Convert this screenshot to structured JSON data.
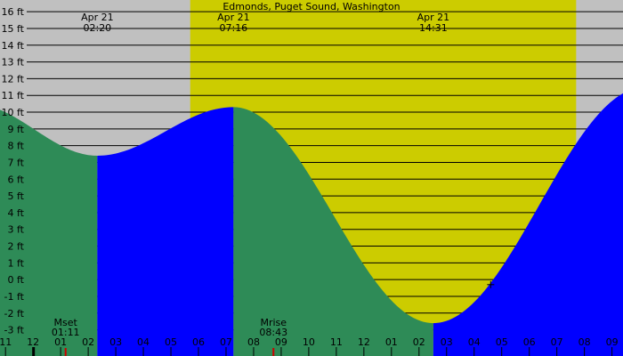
{
  "chart_data": {
    "type": "area",
    "title": "Edmonds, Puget Sound, Washington",
    "unit": "ft",
    "ylim": [
      -3.5,
      16.7
    ],
    "y_ticks": [
      {
        "value": 16,
        "label": "16 ft"
      },
      {
        "value": 15,
        "label": "15 ft"
      },
      {
        "value": 14,
        "label": "14 ft"
      },
      {
        "value": 13,
        "label": "13 ft"
      },
      {
        "value": 12,
        "label": "12 ft"
      },
      {
        "value": 11,
        "label": "11 ft"
      },
      {
        "value": 10,
        "label": "10 ft"
      },
      {
        "value": 9,
        "label": "9 ft"
      },
      {
        "value": 8,
        "label": "8 ft"
      },
      {
        "value": 7,
        "label": "7 ft"
      },
      {
        "value": 6,
        "label": "6 ft"
      },
      {
        "value": 5,
        "label": "5 ft"
      },
      {
        "value": 4,
        "label": "4 ft"
      },
      {
        "value": 3,
        "label": "3 ft"
      },
      {
        "value": 2,
        "label": "2 ft"
      },
      {
        "value": 1,
        "label": "1 ft"
      },
      {
        "value": 0,
        "label": "0 ft"
      },
      {
        "value": -1,
        "label": "-1 ft"
      },
      {
        "value": -2,
        "label": "-2 ft"
      },
      {
        "value": -3,
        "label": "-3 ft"
      }
    ],
    "x_range_hours": [
      -1.2,
      21.4
    ],
    "x_ticks": [
      {
        "hour": -1,
        "label": "11"
      },
      {
        "hour": 0,
        "label": "12"
      },
      {
        "hour": 1,
        "label": "01"
      },
      {
        "hour": 2,
        "label": "02"
      },
      {
        "hour": 3,
        "label": "03"
      },
      {
        "hour": 4,
        "label": "04"
      },
      {
        "hour": 5,
        "label": "05"
      },
      {
        "hour": 6,
        "label": "06"
      },
      {
        "hour": 7,
        "label": "07"
      },
      {
        "hour": 8,
        "label": "08"
      },
      {
        "hour": 9,
        "label": "09"
      },
      {
        "hour": 10,
        "label": "10"
      },
      {
        "hour": 11,
        "label": "11"
      },
      {
        "hour": 12,
        "label": "12"
      },
      {
        "hour": 13,
        "label": "01"
      },
      {
        "hour": 14,
        "label": "02"
      },
      {
        "hour": 15,
        "label": "03"
      },
      {
        "hour": 16,
        "label": "04"
      },
      {
        "hour": 17,
        "label": "05"
      },
      {
        "hour": 18,
        "label": "06"
      },
      {
        "hour": 19,
        "label": "07"
      },
      {
        "hour": 20,
        "label": "08"
      },
      {
        "hour": 21,
        "label": "09"
      }
    ],
    "daylight_hours": [
      5.7,
      19.7
    ],
    "tide_extremes": [
      {
        "hour": -2.2,
        "value": 10.5
      },
      {
        "hour": 2.33,
        "value": 7.4,
        "date_label": "Apr 21",
        "time_label": "02:20"
      },
      {
        "hour": 7.27,
        "value": 10.3,
        "date_label": "Apr 21",
        "time_label": "07:16"
      },
      {
        "hour": 14.52,
        "value": -2.6,
        "date_label": "Apr 21",
        "time_label": "14:31"
      },
      {
        "hour": 22.2,
        "value": 11.5
      }
    ],
    "phases": [
      {
        "start": -1.2,
        "end": 2.33,
        "trend": "falling"
      },
      {
        "start": 2.33,
        "end": 7.27,
        "trend": "rising"
      },
      {
        "start": 7.27,
        "end": 14.52,
        "trend": "falling"
      },
      {
        "start": 14.52,
        "end": 21.4,
        "trend": "rising"
      }
    ],
    "moon_events": [
      {
        "name": "Mset",
        "time_label": "01:11",
        "hour": 1.18
      },
      {
        "name": "Mrise",
        "time_label": "08:43",
        "hour": 8.72
      }
    ],
    "now_marker": {
      "hour": 16.6,
      "value": -0.3
    },
    "colors": {
      "night": "#c0c0c0",
      "day": "#cccc00",
      "rising": "#0000ff",
      "falling": "#2e8b57",
      "grid": "#000000",
      "moon_tick": "#cc0000"
    }
  }
}
